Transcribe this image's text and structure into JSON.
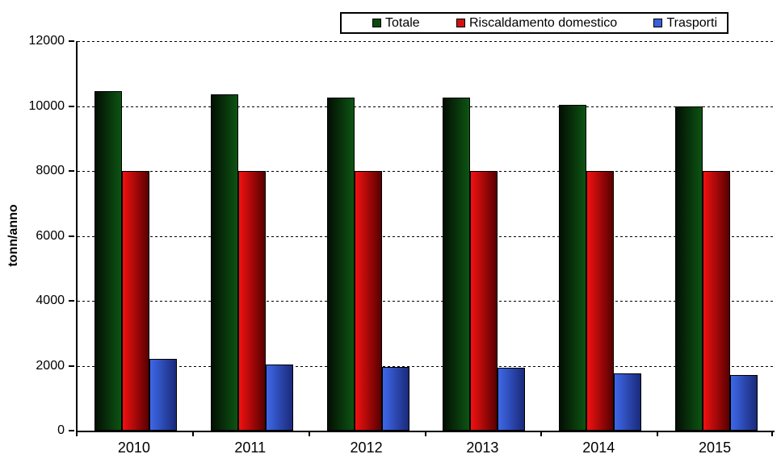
{
  "chart_data": {
    "type": "bar",
    "title": "",
    "xlabel": "",
    "ylabel": "tonn/anno",
    "categories": [
      "2010",
      "2011",
      "2012",
      "2013",
      "2014",
      "2015"
    ],
    "series": [
      {
        "name": "Totale",
        "values": [
          10450,
          10350,
          10250,
          10250,
          10050,
          10000
        ],
        "fill_from": "#030f03",
        "fill_to": "#0d5413",
        "legend_fill": "#0d4a0d"
      },
      {
        "name": "Riscaldamento domestico",
        "values": [
          8000,
          8000,
          8000,
          8000,
          8000,
          8000
        ],
        "fill_from": "#f31111",
        "fill_to": "#570000",
        "legend_fill": "#cf1212"
      },
      {
        "name": "Trasporti",
        "values": [
          2200,
          2050,
          1970,
          1940,
          1760,
          1720
        ],
        "fill_from": "#3e68e8",
        "fill_to": "#1a2a7a",
        "legend_fill": "#3a5fd8"
      }
    ],
    "ylim": [
      0,
      12000
    ],
    "yticks": [
      0,
      2000,
      4000,
      6000,
      8000,
      10000,
      12000
    ],
    "grid": "horizontal-dashed",
    "legend_position": "top",
    "axis_color": "#000000",
    "background": "#ffffff"
  }
}
